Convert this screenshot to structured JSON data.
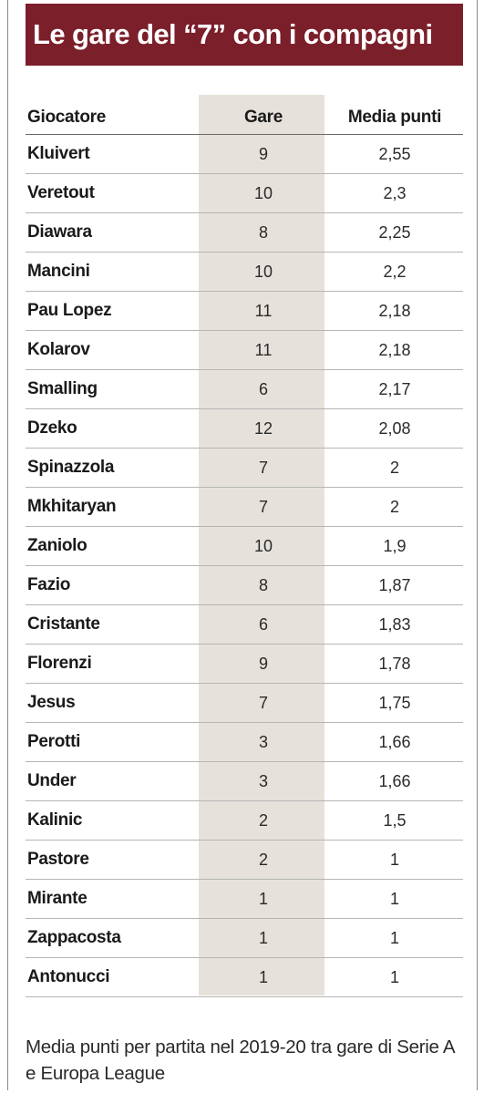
{
  "title": "Le gare del “7” con i compagni",
  "columns": {
    "player": "Giocatore",
    "games": "Gare",
    "avg": "Media punti"
  },
  "rows": [
    {
      "name": "Kluivert",
      "games": "9",
      "avg": "2,55"
    },
    {
      "name": "Veretout",
      "games": "10",
      "avg": "2,3"
    },
    {
      "name": "Diawara",
      "games": "8",
      "avg": "2,25"
    },
    {
      "name": "Mancini",
      "games": "10",
      "avg": "2,2"
    },
    {
      "name": "Pau Lopez",
      "games": "11",
      "avg": "2,18"
    },
    {
      "name": "Kolarov",
      "games": "11",
      "avg": "2,18"
    },
    {
      "name": "Smalling",
      "games": "6",
      "avg": "2,17"
    },
    {
      "name": "Dzeko",
      "games": "12",
      "avg": "2,08"
    },
    {
      "name": "Spinazzola",
      "games": "7",
      "avg": "2"
    },
    {
      "name": "Mkhitaryan",
      "games": "7",
      "avg": "2"
    },
    {
      "name": "Zaniolo",
      "games": "10",
      "avg": "1,9"
    },
    {
      "name": "Fazio",
      "games": "8",
      "avg": "1,87"
    },
    {
      "name": "Cristante",
      "games": "6",
      "avg": "1,83"
    },
    {
      "name": "Florenzi",
      "games": "9",
      "avg": "1,78"
    },
    {
      "name": "Jesus",
      "games": "7",
      "avg": "1,75"
    },
    {
      "name": "Perotti",
      "games": "3",
      "avg": "1,66"
    },
    {
      "name": "Under",
      "games": "3",
      "avg": "1,66"
    },
    {
      "name": "Kalinic",
      "games": "2",
      "avg": "1,5"
    },
    {
      "name": "Pastore",
      "games": "2",
      "avg": "1"
    },
    {
      "name": "Mirante",
      "games": "1",
      "avg": "1"
    },
    {
      "name": "Zappacosta",
      "games": "1",
      "avg": "1"
    },
    {
      "name": "Antonucci",
      "games": "1",
      "avg": "1"
    }
  ],
  "footnote": "Media punti per partita nel 2019-20 tra gare di Serie A e Europa League",
  "colors": {
    "title_bg": "#7b1f2a",
    "column_shade": "#e6e2db"
  }
}
